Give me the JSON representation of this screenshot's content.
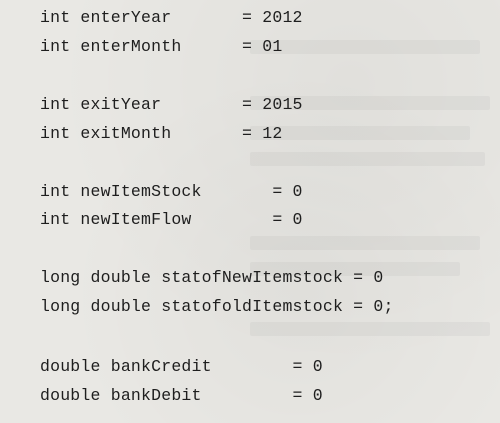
{
  "code_lines": [
    "int enterYear       = 2012",
    "int enterMonth      = 01",
    "int exitYear        = 2015",
    "int exitMonth       = 12",
    "int newItemStock       = 0",
    "int newItemFlow        = 0",
    "long double statofNewItemstock = 0",
    "long double statofoldItemstock = 0;",
    "double bankCredit        = 0",
    "double bankDebit         = 0"
  ]
}
